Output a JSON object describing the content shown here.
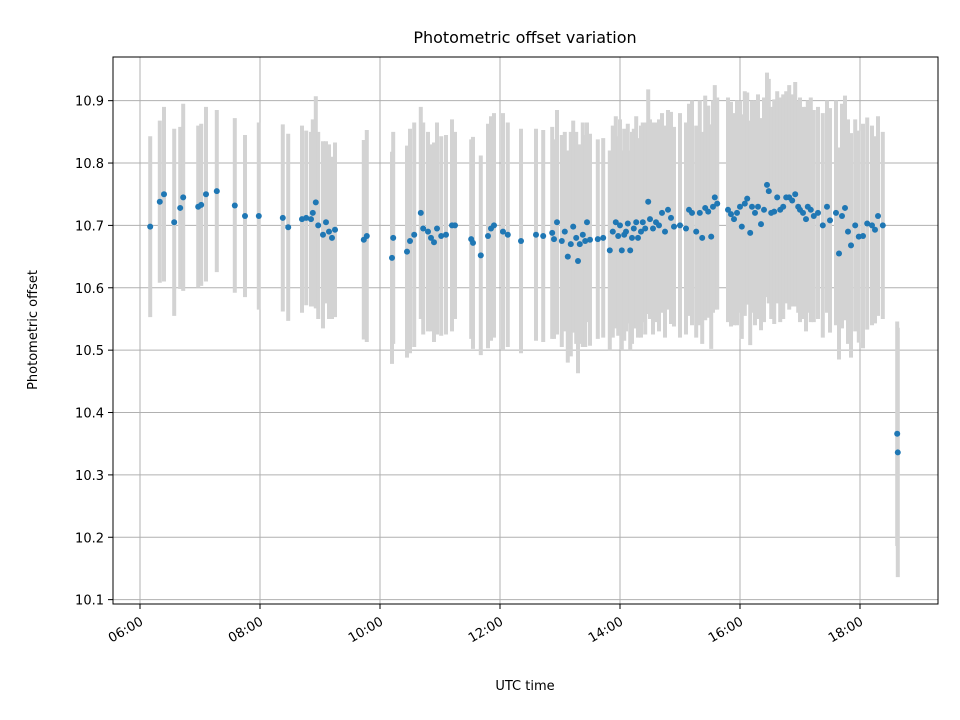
{
  "chart_data": {
    "type": "scatter",
    "title": "Photometric offset variation",
    "xlabel": "UTC time",
    "ylabel": "Photometric offset",
    "x_unit": "hours (UTC)",
    "xlim": [
      5.55,
      19.3
    ],
    "ylim": [
      10.093,
      10.97
    ],
    "x_ticks": [
      6,
      8,
      10,
      12,
      14,
      16,
      18
    ],
    "x_tick_labels": [
      "06:00",
      "08:00",
      "10:00",
      "12:00",
      "14:00",
      "16:00",
      "18:00"
    ],
    "y_ticks": [
      10.1,
      10.2,
      10.3,
      10.4,
      10.5,
      10.6,
      10.7,
      10.8,
      10.9
    ],
    "y_tick_labels": [
      "10.1",
      "10.2",
      "10.3",
      "10.4",
      "10.5",
      "10.6",
      "10.7",
      "10.8",
      "10.9"
    ],
    "grid": true,
    "marker_color": "#1f77b4",
    "errorbar_color": "#d3d3d3",
    "series": [
      {
        "points": [
          [
            6.17,
            10.698,
            0.145
          ],
          [
            6.33,
            10.738,
            0.13
          ],
          [
            6.4,
            10.75,
            0.14
          ],
          [
            6.57,
            10.705,
            0.15
          ],
          [
            6.67,
            10.728,
            0.13
          ],
          [
            6.72,
            10.745,
            0.15
          ],
          [
            6.97,
            10.73,
            0.13
          ],
          [
            7.02,
            10.733,
            0.13
          ],
          [
            7.1,
            10.75,
            0.14
          ],
          [
            7.28,
            10.755,
            0.13
          ],
          [
            7.58,
            10.732,
            0.14
          ],
          [
            7.75,
            10.715,
            0.13
          ],
          [
            7.98,
            10.715,
            0.15
          ],
          [
            8.38,
            10.712,
            0.15
          ],
          [
            8.47,
            10.697,
            0.15
          ],
          [
            8.7,
            10.71,
            0.15
          ],
          [
            8.77,
            10.712,
            0.14
          ],
          [
            8.85,
            10.71,
            0.14
          ],
          [
            8.88,
            10.72,
            0.15
          ],
          [
            8.93,
            10.737,
            0.17
          ],
          [
            8.97,
            10.7,
            0.15
          ],
          [
            9.05,
            10.685,
            0.15
          ],
          [
            9.1,
            10.705,
            0.13
          ],
          [
            9.15,
            10.69,
            0.14
          ],
          [
            9.2,
            10.68,
            0.13
          ],
          [
            9.25,
            10.693,
            0.14
          ],
          [
            9.73,
            10.677,
            0.16
          ],
          [
            9.78,
            10.683,
            0.17
          ],
          [
            10.2,
            10.648,
            0.17
          ],
          [
            10.22,
            10.68,
            0.17
          ],
          [
            10.45,
            10.658,
            0.17
          ],
          [
            10.5,
            10.675,
            0.18
          ],
          [
            10.57,
            10.685,
            0.18
          ],
          [
            10.68,
            10.72,
            0.17
          ],
          [
            10.72,
            10.695,
            0.17
          ],
          [
            10.8,
            10.69,
            0.16
          ],
          [
            10.85,
            10.68,
            0.15
          ],
          [
            10.9,
            10.673,
            0.16
          ],
          [
            10.95,
            10.695,
            0.17
          ],
          [
            11.02,
            10.683,
            0.16
          ],
          [
            11.1,
            10.685,
            0.16
          ],
          [
            11.2,
            10.7,
            0.17
          ],
          [
            11.25,
            10.7,
            0.15
          ],
          [
            11.52,
            10.678,
            0.16
          ],
          [
            11.55,
            10.672,
            0.17
          ],
          [
            11.68,
            10.652,
            0.16
          ],
          [
            11.8,
            10.683,
            0.18
          ],
          [
            11.85,
            10.695,
            0.18
          ],
          [
            11.9,
            10.7,
            0.18
          ],
          [
            12.05,
            10.69,
            0.19
          ],
          [
            12.13,
            10.685,
            0.18
          ],
          [
            12.35,
            10.675,
            0.18
          ],
          [
            12.6,
            10.685,
            0.17
          ],
          [
            12.72,
            10.683,
            0.17
          ],
          [
            12.87,
            10.688,
            0.17
          ],
          [
            12.9,
            10.678,
            0.16
          ],
          [
            12.95,
            10.705,
            0.18
          ],
          [
            13.03,
            10.675,
            0.17
          ],
          [
            13.08,
            10.69,
            0.16
          ],
          [
            13.13,
            10.65,
            0.17
          ],
          [
            13.18,
            10.67,
            0.18
          ],
          [
            13.22,
            10.698,
            0.17
          ],
          [
            13.27,
            10.68,
            0.17
          ],
          [
            13.3,
            10.643,
            0.18
          ],
          [
            13.33,
            10.67,
            0.16
          ],
          [
            13.38,
            10.685,
            0.18
          ],
          [
            13.42,
            10.675,
            0.17
          ],
          [
            13.45,
            10.705,
            0.16
          ],
          [
            13.5,
            10.677,
            0.17
          ],
          [
            13.63,
            10.678,
            0.16
          ],
          [
            13.72,
            10.68,
            0.16
          ],
          [
            13.83,
            10.66,
            0.16
          ],
          [
            13.88,
            10.69,
            0.17
          ],
          [
            13.93,
            10.705,
            0.17
          ],
          [
            13.97,
            10.683,
            0.16
          ],
          [
            14.0,
            10.7,
            0.17
          ],
          [
            14.03,
            10.66,
            0.16
          ],
          [
            14.07,
            10.685,
            0.17
          ],
          [
            14.1,
            10.69,
            0.16
          ],
          [
            14.13,
            10.703,
            0.16
          ],
          [
            14.17,
            10.66,
            0.16
          ],
          [
            14.2,
            10.68,
            0.17
          ],
          [
            14.23,
            10.695,
            0.16
          ],
          [
            14.27,
            10.705,
            0.17
          ],
          [
            14.3,
            10.68,
            0.16
          ],
          [
            14.35,
            10.69,
            0.17
          ],
          [
            14.38,
            10.705,
            0.16
          ],
          [
            14.42,
            10.695,
            0.17
          ],
          [
            14.47,
            10.738,
            0.18
          ],
          [
            14.5,
            10.71,
            0.16
          ],
          [
            14.55,
            10.695,
            0.17
          ],
          [
            14.6,
            10.705,
            0.16
          ],
          [
            14.65,
            10.7,
            0.17
          ],
          [
            14.7,
            10.72,
            0.16
          ],
          [
            14.75,
            10.69,
            0.17
          ],
          [
            14.8,
            10.725,
            0.16
          ],
          [
            14.85,
            10.712,
            0.17
          ],
          [
            14.9,
            10.698,
            0.16
          ],
          [
            15.0,
            10.7,
            0.18
          ],
          [
            15.1,
            10.695,
            0.17
          ],
          [
            15.15,
            10.725,
            0.17
          ],
          [
            15.2,
            10.72,
            0.18
          ],
          [
            15.27,
            10.69,
            0.17
          ],
          [
            15.33,
            10.72,
            0.18
          ],
          [
            15.37,
            10.68,
            0.17
          ],
          [
            15.42,
            10.728,
            0.18
          ],
          [
            15.47,
            10.722,
            0.17
          ],
          [
            15.52,
            10.682,
            0.18
          ],
          [
            15.55,
            10.73,
            0.17
          ],
          [
            15.58,
            10.745,
            0.18
          ],
          [
            15.62,
            10.735,
            0.17
          ],
          [
            15.8,
            10.725,
            0.18
          ],
          [
            15.85,
            10.718,
            0.18
          ],
          [
            15.9,
            10.71,
            0.17
          ],
          [
            15.95,
            10.72,
            0.18
          ],
          [
            16.0,
            10.73,
            0.17
          ],
          [
            16.03,
            10.698,
            0.18
          ],
          [
            16.08,
            10.735,
            0.18
          ],
          [
            16.12,
            10.743,
            0.17
          ],
          [
            16.17,
            10.688,
            0.18
          ],
          [
            16.2,
            10.73,
            0.17
          ],
          [
            16.25,
            10.72,
            0.18
          ],
          [
            16.3,
            10.73,
            0.18
          ],
          [
            16.35,
            10.702,
            0.17
          ],
          [
            16.4,
            10.725,
            0.18
          ],
          [
            16.45,
            10.765,
            0.18
          ],
          [
            16.48,
            10.755,
            0.18
          ],
          [
            16.52,
            10.72,
            0.17
          ],
          [
            16.57,
            10.722,
            0.18
          ],
          [
            16.62,
            10.745,
            0.17
          ],
          [
            16.67,
            10.725,
            0.18
          ],
          [
            16.72,
            10.73,
            0.18
          ],
          [
            16.77,
            10.745,
            0.17
          ],
          [
            16.82,
            10.745,
            0.18
          ],
          [
            16.87,
            10.74,
            0.17
          ],
          [
            16.92,
            10.75,
            0.18
          ],
          [
            16.97,
            10.73,
            0.17
          ],
          [
            17.0,
            10.725,
            0.18
          ],
          [
            17.05,
            10.72,
            0.17
          ],
          [
            17.1,
            10.71,
            0.18
          ],
          [
            17.13,
            10.73,
            0.17
          ],
          [
            17.18,
            10.725,
            0.18
          ],
          [
            17.23,
            10.715,
            0.17
          ],
          [
            17.3,
            10.72,
            0.17
          ],
          [
            17.38,
            10.7,
            0.18
          ],
          [
            17.45,
            10.73,
            0.17
          ],
          [
            17.5,
            10.708,
            0.18
          ],
          [
            17.6,
            10.72,
            0.18
          ],
          [
            17.65,
            10.655,
            0.17
          ],
          [
            17.7,
            10.715,
            0.18
          ],
          [
            17.75,
            10.728,
            0.18
          ],
          [
            17.8,
            10.69,
            0.18
          ],
          [
            17.85,
            10.668,
            0.18
          ],
          [
            17.92,
            10.7,
            0.17
          ],
          [
            17.98,
            10.682,
            0.17
          ],
          [
            18.05,
            10.683,
            0.18
          ],
          [
            18.12,
            10.703,
            0.17
          ],
          [
            18.2,
            10.7,
            0.16
          ],
          [
            18.25,
            10.693,
            0.15
          ],
          [
            18.3,
            10.715,
            0.16
          ],
          [
            18.38,
            10.7,
            0.15
          ],
          [
            18.62,
            10.366,
            0.18
          ],
          [
            18.63,
            10.336,
            0.2
          ]
        ]
      }
    ]
  }
}
